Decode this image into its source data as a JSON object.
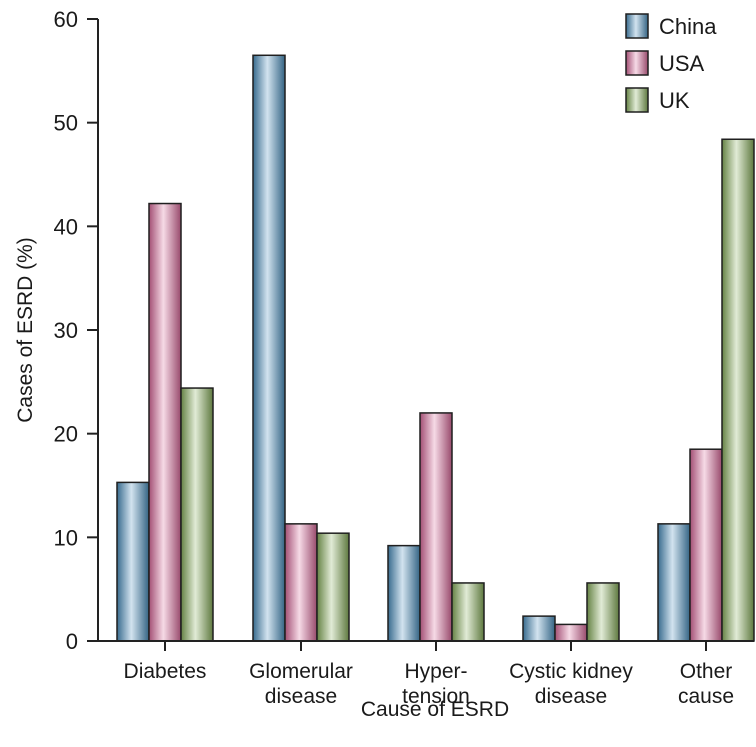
{
  "chart_data": {
    "type": "bar",
    "categories": [
      "Diabetes",
      "Glomerular\ndisease",
      "Hyper-\ntension",
      "Cystic kidney\ndisease",
      "Other\ncause"
    ],
    "series": [
      {
        "name": "China",
        "values": [
          15.3,
          56.5,
          9.2,
          2.4,
          11.3
        ],
        "color": "#4a8fbd"
      },
      {
        "name": "USA",
        "values": [
          42.2,
          11.3,
          22.0,
          1.6,
          18.5
        ],
        "color": "#d9699a"
      },
      {
        "name": "UK",
        "values": [
          24.4,
          10.4,
          5.6,
          5.6,
          48.4
        ],
        "color": "#86ad5a"
      }
    ],
    "xlabel": "Cause of ESRD",
    "ylabel": "Cases of ESRD (%)",
    "ylim": [
      0,
      60
    ],
    "yticks": [
      "0",
      "10",
      "20",
      "30",
      "40",
      "50",
      "60"
    ],
    "legend": "top-right",
    "grid": false
  }
}
